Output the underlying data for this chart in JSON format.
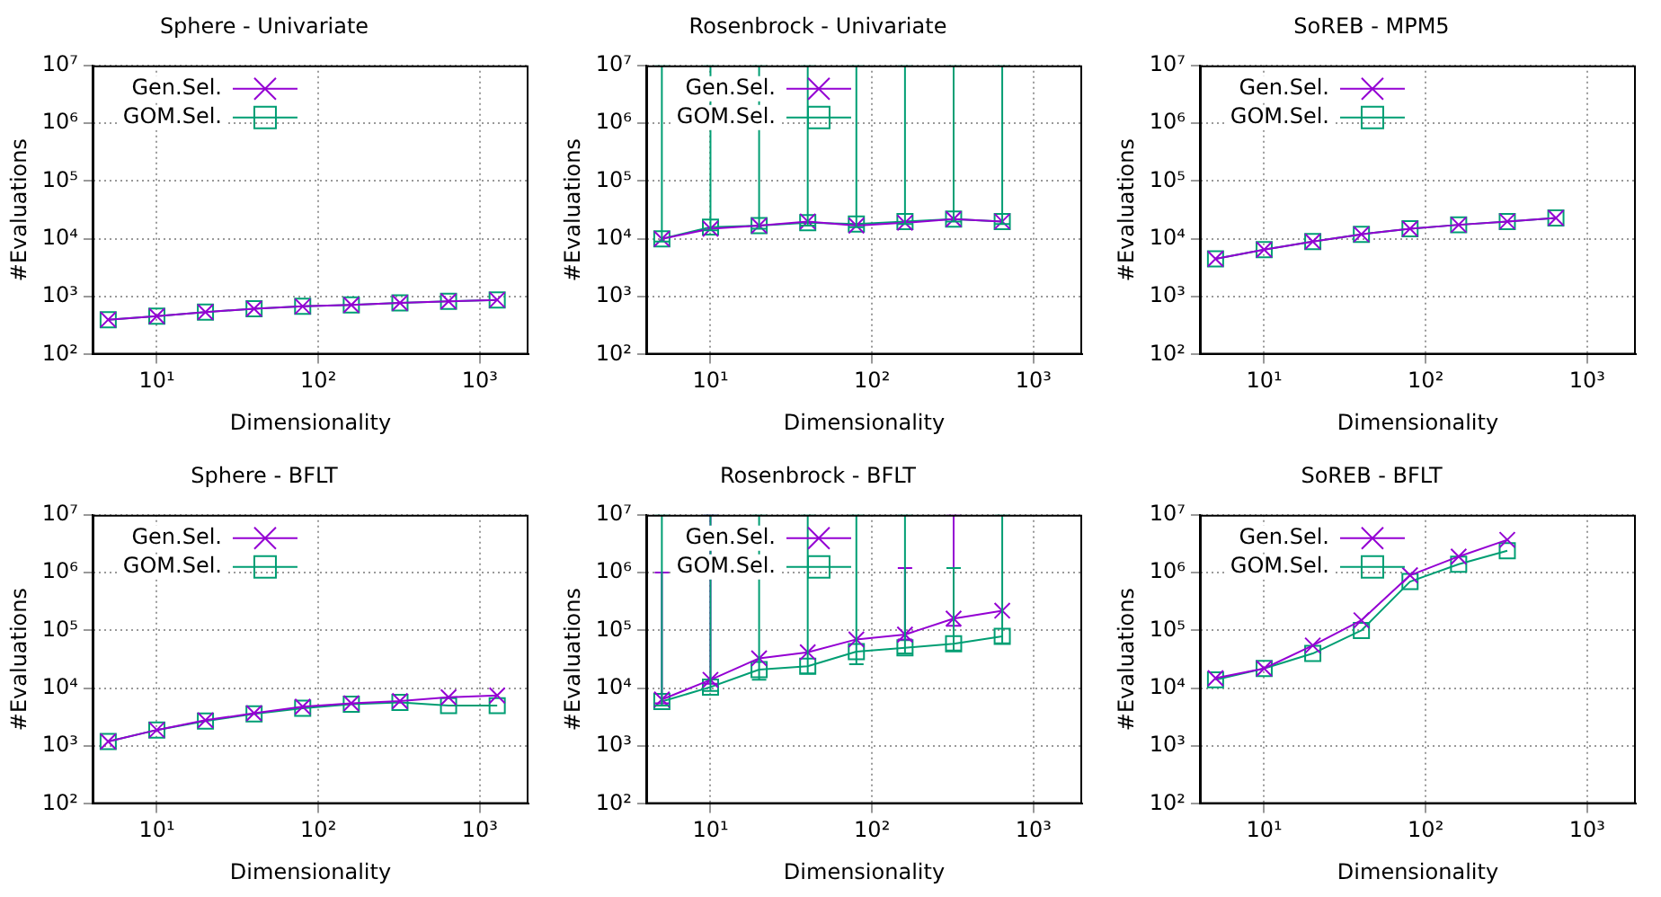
{
  "chart_data": [
    {
      "type": "line",
      "title": "Sphere - Univariate",
      "xlabel": "Dimensionality",
      "ylabel": "#Evaluations",
      "log": "xy",
      "grid": true,
      "legend": "top left",
      "x": [
        5,
        10,
        20,
        40,
        80,
        160,
        320,
        640,
        1280
      ],
      "xlim": [
        4,
        2000
      ],
      "xticks": [
        {
          "value": 10,
          "label": "10¹"
        },
        {
          "value": 100,
          "label": "10²"
        },
        {
          "value": 1000,
          "label": "10³"
        }
      ],
      "ylim": [
        100,
        10000000
      ],
      "yticks": [
        {
          "value": 100,
          "label": "10²"
        },
        {
          "value": 1000,
          "label": "10³"
        },
        {
          "value": 10000,
          "label": "10⁴"
        },
        {
          "value": 100000,
          "label": "10⁵"
        },
        {
          "value": 1000000,
          "label": "10⁶"
        },
        {
          "value": 10000000,
          "label": "10⁷"
        }
      ],
      "series": [
        {
          "name": "Gen.Sel.",
          "color": "#9400d3",
          "marker": "cross",
          "values": [
            400,
            460,
            540,
            620,
            680,
            720,
            780,
            830,
            880
          ]
        },
        {
          "name": "GOM.Sel.",
          "color": "#009e73",
          "marker": "square",
          "values": [
            400,
            460,
            540,
            620,
            680,
            720,
            780,
            830,
            880
          ]
        }
      ]
    },
    {
      "type": "line",
      "title": "Rosenbrock - Univariate",
      "xlabel": "Dimensionality",
      "ylabel": "#Evaluations",
      "log": "xy",
      "grid": true,
      "legend": "top left",
      "x": [
        5,
        10,
        20,
        40,
        80,
        160,
        320,
        640
      ],
      "xlim": [
        4,
        2000
      ],
      "xticks": [
        {
          "value": 10,
          "label": "10¹"
        },
        {
          "value": 100,
          "label": "10²"
        },
        {
          "value": 1000,
          "label": "10³"
        }
      ],
      "ylim": [
        100,
        10000000
      ],
      "yticks": [
        {
          "value": 100,
          "label": "10²"
        },
        {
          "value": 1000,
          "label": "10³"
        },
        {
          "value": 10000,
          "label": "10⁴"
        },
        {
          "value": 100000,
          "label": "10⁵"
        },
        {
          "value": 1000000,
          "label": "10⁶"
        },
        {
          "value": 10000000,
          "label": "10⁷"
        }
      ],
      "series": [
        {
          "name": "Gen.Sel.",
          "color": "#9400d3",
          "marker": "cross",
          "values": [
            10000,
            15000,
            17000,
            20000,
            17000,
            19000,
            22000,
            20000
          ]
        },
        {
          "name": "GOM.Sel.",
          "color": "#009e73",
          "marker": "square",
          "values": [
            10000,
            16000,
            17000,
            19000,
            18000,
            20000,
            22000,
            20000
          ],
          "errors": [
            [
              9000,
              10000000
            ],
            [
              14000,
              10000000
            ],
            [
              15000,
              10000000
            ],
            [
              17000,
              10000000
            ],
            [
              16000,
              10000000
            ],
            [
              18000,
              10000000
            ],
            [
              20000,
              10000000
            ],
            [
              18000,
              10000000
            ]
          ]
        }
      ]
    },
    {
      "type": "line",
      "title": "SoREB - MPM5",
      "xlabel": "Dimensionality",
      "ylabel": "#Evaluations",
      "log": "xy",
      "grid": true,
      "legend": "top left",
      "x": [
        5,
        10,
        20,
        40,
        80,
        160,
        320,
        640
      ],
      "xlim": [
        4,
        2000
      ],
      "xticks": [
        {
          "value": 10,
          "label": "10¹"
        },
        {
          "value": 100,
          "label": "10²"
        },
        {
          "value": 1000,
          "label": "10³"
        }
      ],
      "ylim": [
        100,
        10000000
      ],
      "yticks": [
        {
          "value": 100,
          "label": "10²"
        },
        {
          "value": 1000,
          "label": "10³"
        },
        {
          "value": 10000,
          "label": "10⁴"
        },
        {
          "value": 100000,
          "label": "10⁵"
        },
        {
          "value": 1000000,
          "label": "10⁶"
        },
        {
          "value": 10000000,
          "label": "10⁷"
        }
      ],
      "series": [
        {
          "name": "Gen.Sel.",
          "color": "#9400d3",
          "marker": "cross",
          "values": [
            4500,
            6500,
            9000,
            12000,
            15000,
            17500,
            20000,
            23000
          ]
        },
        {
          "name": "GOM.Sel.",
          "color": "#009e73",
          "marker": "square",
          "values": [
            4500,
            6500,
            9000,
            12000,
            15000,
            17500,
            20000,
            23000
          ]
        }
      ]
    },
    {
      "type": "line",
      "title": "Sphere - BFLT",
      "xlabel": "Dimensionality",
      "ylabel": "#Evaluations",
      "log": "xy",
      "grid": true,
      "legend": "top left",
      "x": [
        5,
        10,
        20,
        40,
        80,
        160,
        320,
        640,
        1280
      ],
      "xlim": [
        4,
        2000
      ],
      "xticks": [
        {
          "value": 10,
          "label": "10¹"
        },
        {
          "value": 100,
          "label": "10²"
        },
        {
          "value": 1000,
          "label": "10³"
        }
      ],
      "ylim": [
        100,
        10000000
      ],
      "yticks": [
        {
          "value": 100,
          "label": "10²"
        },
        {
          "value": 1000,
          "label": "10³"
        },
        {
          "value": 10000,
          "label": "10⁴"
        },
        {
          "value": 100000,
          "label": "10⁵"
        },
        {
          "value": 1000000,
          "label": "10⁶"
        },
        {
          "value": 10000000,
          "label": "10⁷"
        }
      ],
      "series": [
        {
          "name": "Gen.Sel.",
          "color": "#9400d3",
          "marker": "cross",
          "values": [
            1200,
            1900,
            2800,
            3700,
            4800,
            5500,
            6000,
            7000,
            7500
          ]
        },
        {
          "name": "GOM.Sel.",
          "color": "#009e73",
          "marker": "square",
          "values": [
            1200,
            1900,
            2700,
            3600,
            4500,
            5300,
            5700,
            5000,
            5000
          ]
        }
      ]
    },
    {
      "type": "line",
      "title": "Rosenbrock - BFLT",
      "xlabel": "Dimensionality",
      "ylabel": "#Evaluations",
      "log": "xy",
      "grid": true,
      "legend": "top left",
      "x": [
        5,
        10,
        20,
        40,
        80,
        160,
        320,
        640
      ],
      "xlim": [
        4,
        2000
      ],
      "xticks": [
        {
          "value": 10,
          "label": "10¹"
        },
        {
          "value": 100,
          "label": "10²"
        },
        {
          "value": 1000,
          "label": "10³"
        }
      ],
      "ylim": [
        100,
        10000000
      ],
      "yticks": [
        {
          "value": 100,
          "label": "10²"
        },
        {
          "value": 1000,
          "label": "10³"
        },
        {
          "value": 10000,
          "label": "10⁴"
        },
        {
          "value": 100000,
          "label": "10⁵"
        },
        {
          "value": 1000000,
          "label": "10⁶"
        },
        {
          "value": 10000000,
          "label": "10⁷"
        }
      ],
      "series": [
        {
          "name": "Gen.Sel.",
          "color": "#9400d3",
          "marker": "cross",
          "values": [
            6400,
            14000,
            33000,
            42000,
            70000,
            85000,
            160000,
            220000
          ],
          "errors": [
            [
              5500,
              1000000
            ],
            [
              12000,
              10000000
            ],
            null,
            null,
            null,
            [
              70000,
              1200000
            ],
            [
              120000,
              10000000
            ],
            null
          ]
        },
        {
          "name": "GOM.Sel.",
          "color": "#009e73",
          "marker": "square",
          "values": [
            5900,
            10500,
            21000,
            24000,
            43000,
            50000,
            59000,
            79000
          ],
          "errors": [
            [
              5000,
              10000000
            ],
            [
              9000,
              10000000
            ],
            [
              14000,
              10000000
            ],
            [
              18000,
              10000000
            ],
            [
              26000,
              10000000
            ],
            [
              40000,
              10000000
            ],
            [
              45000,
              1200000
            ],
            [
              60000,
              10000000
            ]
          ]
        }
      ]
    },
    {
      "type": "line",
      "title": "SoREB - BFLT",
      "xlabel": "Dimensionality",
      "ylabel": "#Evaluations",
      "log": "xy",
      "grid": true,
      "legend": "top left",
      "x": [
        5,
        10,
        20,
        40,
        80,
        160,
        320
      ],
      "xlim": [
        4,
        2000
      ],
      "xticks": [
        {
          "value": 10,
          "label": "10¹"
        },
        {
          "value": 100,
          "label": "10²"
        },
        {
          "value": 1000,
          "label": "10³"
        }
      ],
      "ylim": [
        100,
        10000000
      ],
      "yticks": [
        {
          "value": 100,
          "label": "10²"
        },
        {
          "value": 1000,
          "label": "10³"
        },
        {
          "value": 10000,
          "label": "10⁴"
        },
        {
          "value": 100000,
          "label": "10⁵"
        },
        {
          "value": 1000000,
          "label": "10⁶"
        },
        {
          "value": 10000000,
          "label": "10⁷"
        }
      ],
      "series": [
        {
          "name": "Gen.Sel.",
          "color": "#9400d3",
          "marker": "cross",
          "values": [
            15000,
            22000,
            55000,
            150000,
            900000,
            1900000,
            3700000
          ]
        },
        {
          "name": "GOM.Sel.",
          "color": "#009e73",
          "marker": "square",
          "values": [
            14000,
            22000,
            40000,
            100000,
            700000,
            1400000,
            2400000
          ]
        }
      ]
    }
  ]
}
